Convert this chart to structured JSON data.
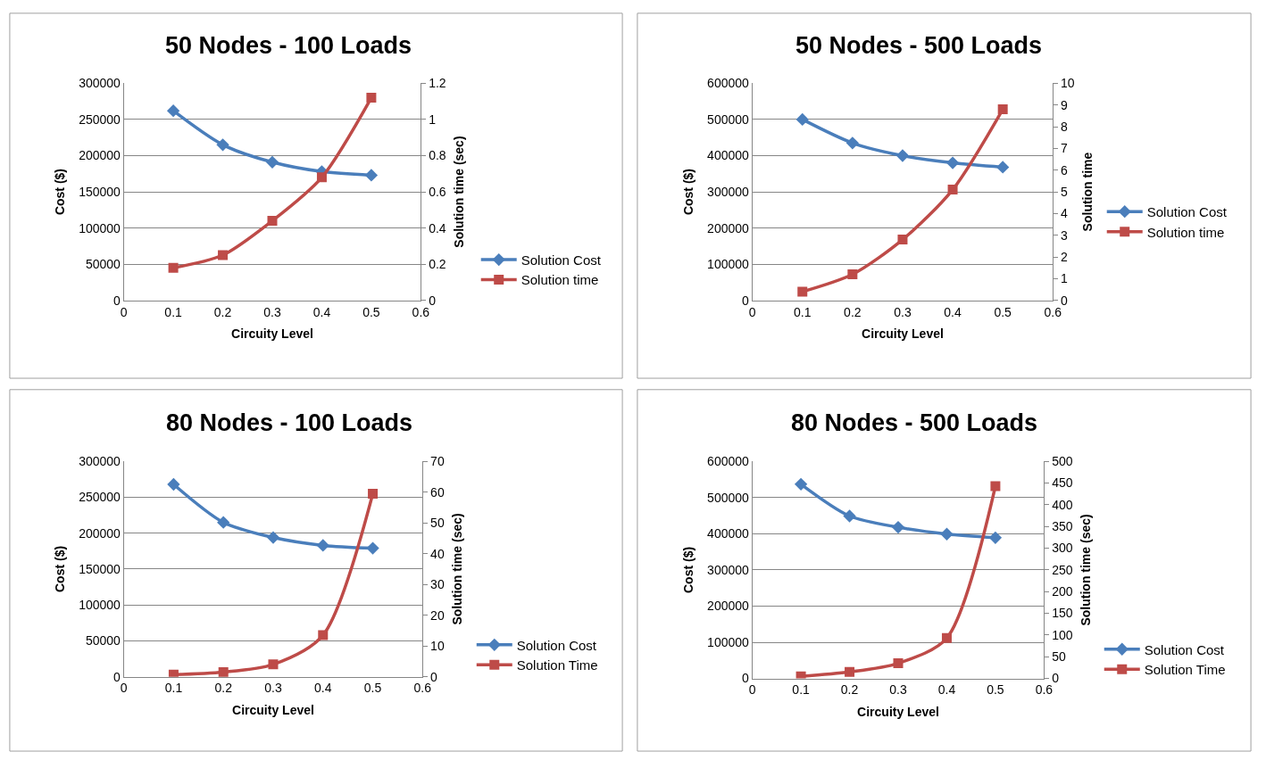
{
  "chart_data": [
    {
      "type": "line",
      "title": "50 Nodes - 100 Loads",
      "xlabel": "Circuity Level",
      "ylabel": "Cost ($)",
      "y2label": "Solution time (sec)",
      "x": [
        0.1,
        0.2,
        0.3,
        0.4,
        0.5
      ],
      "xlim": [
        0,
        0.6
      ],
      "xticks": [
        0,
        0.1,
        0.2,
        0.3,
        0.4,
        0.5,
        0.6
      ],
      "ylim": [
        0,
        300000
      ],
      "yticks": [
        0,
        50000,
        100000,
        150000,
        200000,
        250000,
        300000
      ],
      "y2lim": [
        0,
        1.2
      ],
      "y2ticks": [
        0,
        0.2,
        0.4,
        0.6,
        0.8,
        1,
        1.2
      ],
      "grid": "y",
      "legend": "right",
      "line_style": "solid",
      "series": [
        {
          "name": "Solution Cost",
          "color": "#4a7ebb",
          "marker": "diamond",
          "values": [
            262000,
            215000,
            191000,
            178000,
            173000
          ]
        },
        {
          "name": "Solution time",
          "color": "#be4b48",
          "marker": "square",
          "axis": "y2",
          "values": [
            0.18,
            0.25,
            0.44,
            0.68,
            1.12
          ]
        }
      ]
    },
    {
      "type": "line",
      "title": "50 Nodes - 500 Loads",
      "xlabel": "Circuity Level",
      "ylabel": "Cost ($)",
      "y2label": "Solution time",
      "x": [
        0.1,
        0.2,
        0.3,
        0.4,
        0.5
      ],
      "xlim": [
        0,
        0.6
      ],
      "xticks": [
        0,
        0.1,
        0.2,
        0.3,
        0.4,
        0.5,
        0.6
      ],
      "ylim": [
        0,
        600000
      ],
      "yticks": [
        0,
        100000,
        200000,
        300000,
        400000,
        500000,
        600000
      ],
      "y2lim": [
        0,
        10
      ],
      "y2ticks": [
        0,
        1,
        2,
        3,
        4,
        5,
        6,
        7,
        8,
        9,
        10
      ],
      "grid": "y",
      "legend": "right",
      "line_style": "solid",
      "series": [
        {
          "name": "Solution Cost",
          "color": "#4a7ebb",
          "marker": "diamond",
          "values": [
            500000,
            435000,
            400000,
            380000,
            368000
          ]
        },
        {
          "name": "Solution time",
          "color": "#be4b48",
          "marker": "square",
          "axis": "y2",
          "values": [
            0.4,
            1.2,
            2.8,
            5.1,
            8.8
          ]
        }
      ]
    },
    {
      "type": "line",
      "title": "80 Nodes - 100 Loads",
      "xlabel": "Circuity Level",
      "ylabel": "Cost ($)",
      "y2label": "Solution time (sec)",
      "x": [
        0.1,
        0.2,
        0.3,
        0.4,
        0.5
      ],
      "xlim": [
        0,
        0.6
      ],
      "xticks": [
        0,
        0.1,
        0.2,
        0.3,
        0.4,
        0.5,
        0.6
      ],
      "ylim": [
        0,
        300000
      ],
      "yticks": [
        0,
        50000,
        100000,
        150000,
        200000,
        250000,
        300000
      ],
      "y2lim": [
        0,
        70
      ],
      "y2ticks": [
        0,
        10,
        20,
        30,
        40,
        50,
        60,
        70
      ],
      "grid": "y",
      "legend": "right",
      "line_style": "solid",
      "series": [
        {
          "name": "Solution Cost",
          "color": "#4a7ebb",
          "marker": "diamond",
          "values": [
            268000,
            215000,
            194000,
            183000,
            179000
          ]
        },
        {
          "name": "Solution Time",
          "color": "#be4b48",
          "marker": "square",
          "axis": "y2",
          "values": [
            0.7,
            1.5,
            4,
            13.5,
            59.5
          ]
        }
      ]
    },
    {
      "type": "line",
      "title": "80 Nodes - 500 Loads",
      "xlabel": "Circuity Level",
      "ylabel": "Cost ($)",
      "y2label": "Solution time (sec)",
      "x": [
        0.1,
        0.2,
        0.3,
        0.4,
        0.5
      ],
      "xlim": [
        0,
        0.6
      ],
      "xticks": [
        0,
        0.1,
        0.2,
        0.3,
        0.4,
        0.5,
        0.6
      ],
      "ylim": [
        0,
        600000
      ],
      "yticks": [
        0,
        100000,
        200000,
        300000,
        400000,
        500000,
        600000
      ],
      "y2lim": [
        0,
        500
      ],
      "y2ticks": [
        0,
        50,
        100,
        150,
        200,
        250,
        300,
        350,
        400,
        450,
        500
      ],
      "grid": "y",
      "legend": "right",
      "line_style": "solid",
      "series": [
        {
          "name": "Solution Cost",
          "color": "#4a7ebb",
          "marker": "diamond",
          "values": [
            537000,
            449000,
            418000,
            399000,
            389000
          ]
        },
        {
          "name": "Solution Time",
          "color": "#be4b48",
          "marker": "square",
          "axis": "y2",
          "values": [
            5,
            15,
            35,
            93,
            443
          ]
        }
      ]
    }
  ]
}
